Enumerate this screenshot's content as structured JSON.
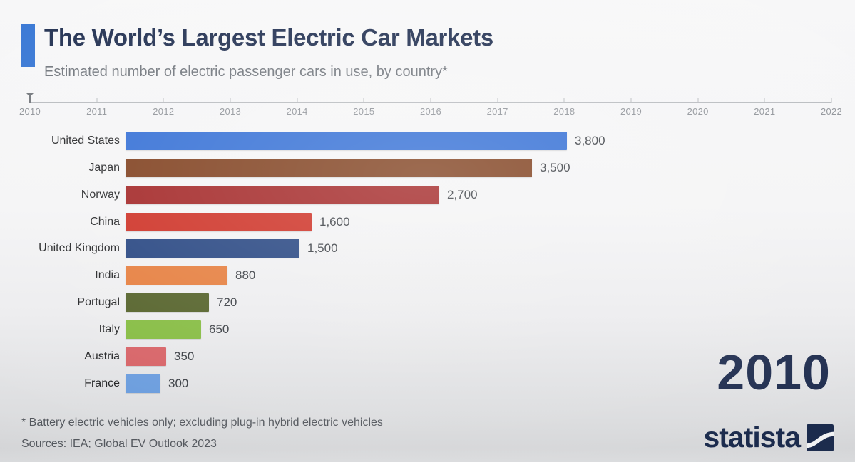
{
  "header": {
    "title": "The World’s Largest Electric Car Markets",
    "subtitle": "Estimated number of electric passenger cars in use, by country*",
    "accent_color": "#3273d3"
  },
  "timeline": {
    "years": [
      "2010",
      "2011",
      "2012",
      "2013",
      "2014",
      "2015",
      "2016",
      "2017",
      "2018",
      "2019",
      "2020",
      "2021",
      "2022"
    ],
    "marker_year": "2010"
  },
  "chart_data": {
    "type": "bar",
    "orientation": "horizontal",
    "title": "The World’s Largest Electric Car Markets",
    "xlabel": "",
    "ylabel": "",
    "xlim": [
      0,
      3800
    ],
    "grid": false,
    "legend": false,
    "categories": [
      "United States",
      "Japan",
      "Norway",
      "China",
      "United Kingdom",
      "India",
      "Portugal",
      "Italy",
      "Austria",
      "France"
    ],
    "values": [
      3800,
      3500,
      2700,
      1600,
      1500,
      880,
      720,
      650,
      350,
      300
    ],
    "value_labels": [
      "3,800",
      "3,500",
      "2,700",
      "1,600",
      "1,500",
      "880",
      "720",
      "650",
      "350",
      "300"
    ],
    "colors": [
      "#2e6bd4",
      "#7c3a17",
      "#a01f1f",
      "#cc2a1e",
      "#1f3f7d",
      "#e57a38",
      "#4f5d23",
      "#82ba3c",
      "#d65f63",
      "#689bdd"
    ]
  },
  "year_display": "2010",
  "footer": {
    "note": "* Battery electric vehicles only; excluding plug-in hybrid electric vehicles",
    "sources": "Sources: IEA; Global EV Outlook 2023"
  },
  "branding": {
    "logo_text": "statista",
    "logo_color": "#1b2b4d"
  }
}
